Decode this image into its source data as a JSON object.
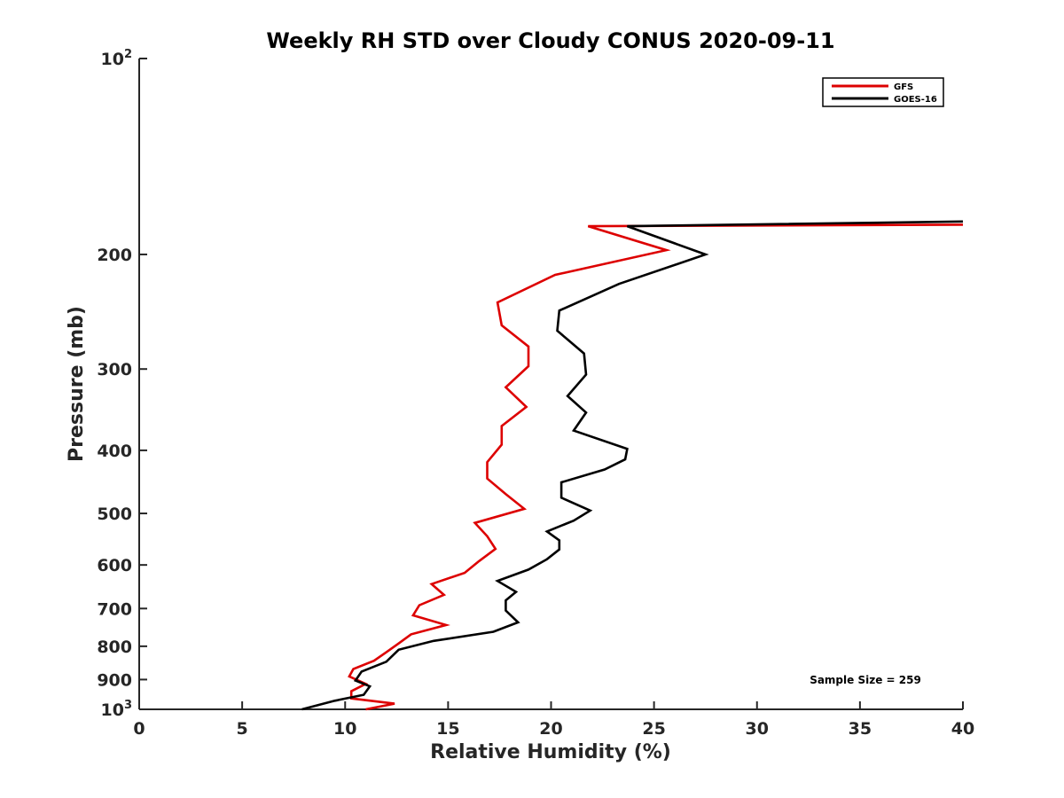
{
  "chart_data": {
    "type": "line",
    "title": "Weekly RH STD over Cloudy CONUS 2020-09-11",
    "xlabel": "Relative Humidity (%)",
    "ylabel": "Pressure (mb)",
    "xlim": [
      0,
      40
    ],
    "ylim": [
      1000,
      100
    ],
    "yscale": "log",
    "x_ticks": [
      "0",
      "5",
      "10",
      "15",
      "20",
      "25",
      "30",
      "35",
      "40"
    ],
    "y_ticks": [
      {
        "value": 100,
        "base": "10",
        "exp": "2"
      },
      {
        "value": 200,
        "label": "200"
      },
      {
        "value": 300,
        "label": "300"
      },
      {
        "value": 400,
        "label": "400"
      },
      {
        "value": 500,
        "label": "500"
      },
      {
        "value": 600,
        "label": "600"
      },
      {
        "value": 700,
        "label": "700"
      },
      {
        "value": 800,
        "label": "800"
      },
      {
        "value": 900,
        "label": "900"
      },
      {
        "value": 1000,
        "base": "10",
        "exp": "3"
      }
    ],
    "legend_position": "top-right",
    "annotation": "Sample Size = 259",
    "series": [
      {
        "name": "GFS",
        "color": "#dd0000",
        "points": [
          [
            40.0,
            180
          ],
          [
            21.8,
            181
          ],
          [
            25.6,
            197
          ],
          [
            20.2,
            215
          ],
          [
            17.4,
            237
          ],
          [
            17.6,
            257
          ],
          [
            18.9,
            277
          ],
          [
            18.9,
            297
          ],
          [
            17.8,
            320
          ],
          [
            18.8,
            343
          ],
          [
            17.6,
            367
          ],
          [
            17.6,
            392
          ],
          [
            16.9,
            417
          ],
          [
            16.9,
            442
          ],
          [
            17.8,
            467
          ],
          [
            18.7,
            492
          ],
          [
            16.3,
            517
          ],
          [
            16.9,
            542
          ],
          [
            17.3,
            567
          ],
          [
            16.5,
            592
          ],
          [
            15.8,
            617
          ],
          [
            14.2,
            642
          ],
          [
            14.8,
            667
          ],
          [
            13.6,
            692
          ],
          [
            13.3,
            717
          ],
          [
            14.9,
            742
          ],
          [
            13.2,
            767
          ],
          [
            12.6,
            792
          ],
          [
            12.0,
            817
          ],
          [
            11.4,
            842
          ],
          [
            10.4,
            867
          ],
          [
            10.2,
            890
          ],
          [
            11.0,
            914
          ],
          [
            10.3,
            938
          ],
          [
            10.3,
            962
          ],
          [
            12.4,
            980
          ],
          [
            11.0,
            1000
          ]
        ]
      },
      {
        "name": "GOES-16",
        "color": "#000000",
        "points": [
          [
            40.0,
            178
          ],
          [
            23.7,
            181
          ],
          [
            27.5,
            200
          ],
          [
            23.3,
            222
          ],
          [
            20.4,
            244
          ],
          [
            20.3,
            262
          ],
          [
            21.6,
            284
          ],
          [
            21.7,
            306
          ],
          [
            20.8,
            330
          ],
          [
            21.7,
            350
          ],
          [
            21.1,
            373
          ],
          [
            23.7,
            398
          ],
          [
            23.6,
            413
          ],
          [
            22.6,
            428
          ],
          [
            20.5,
            448
          ],
          [
            20.5,
            473
          ],
          [
            21.9,
            495
          ],
          [
            21.1,
            513
          ],
          [
            19.8,
            533
          ],
          [
            20.4,
            550
          ],
          [
            20.4,
            568
          ],
          [
            19.8,
            588
          ],
          [
            18.9,
            610
          ],
          [
            17.4,
            635
          ],
          [
            18.3,
            660
          ],
          [
            17.8,
            680
          ],
          [
            17.8,
            705
          ],
          [
            18.4,
            735
          ],
          [
            17.2,
            760
          ],
          [
            14.3,
            785
          ],
          [
            12.6,
            810
          ],
          [
            12.0,
            845
          ],
          [
            10.8,
            875
          ],
          [
            10.5,
            903
          ],
          [
            11.2,
            922
          ],
          [
            10.9,
            950
          ],
          [
            9.5,
            970
          ],
          [
            7.9,
            1000
          ]
        ]
      }
    ]
  }
}
